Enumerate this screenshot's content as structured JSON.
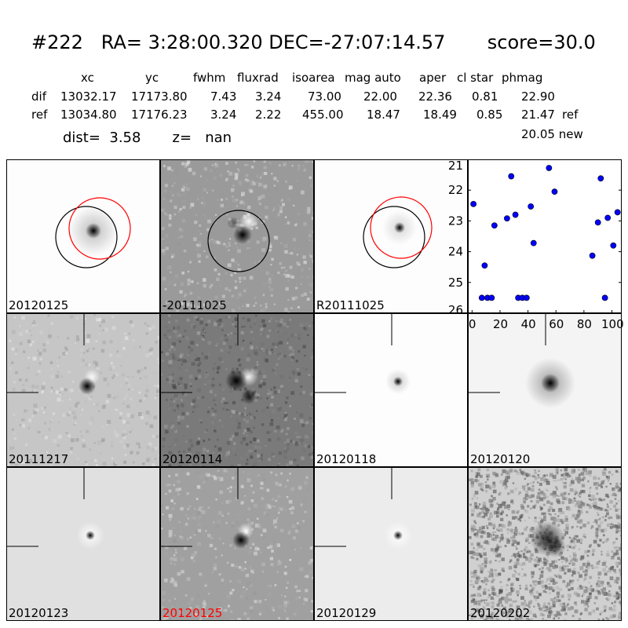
{
  "header": {
    "title": "#222   RA= 3:28:00.320 DEC=-27:07:14.57       score=30.0",
    "columns": [
      "xc",
      "yc",
      "fwhm",
      "fluxrad",
      "isoarea",
      "mag auto",
      "aper",
      "cl star",
      "phmag"
    ],
    "rows": [
      {
        "label": "dif",
        "values": [
          "13032.17",
          "17173.80",
          "7.43",
          "3.24",
          "73.00",
          "22.00",
          "22.36",
          "0.81",
          "22.90"
        ],
        "suffix": ""
      },
      {
        "label": "ref",
        "values": [
          "13034.80",
          "17176.23",
          "3.24",
          "2.22",
          "455.00",
          "18.47",
          "18.49",
          "0.85",
          "21.47"
        ],
        "suffix": "ref"
      }
    ],
    "dist_text": "dist=  3.58       z=   nan",
    "new_text": "20.05 new"
  },
  "panels": [
    {
      "label": "20120125",
      "bg": "#fdfdfd",
      "kind": "circles",
      "color": "#000000"
    },
    {
      "label": "-20111025",
      "bg": "#9a9a9a",
      "kind": "circle-dipole",
      "color": "#000000"
    },
    {
      "label": "R20111025",
      "bg": "#fdfdfd",
      "kind": "circles-small",
      "color": "#000000"
    },
    {
      "label": "20111217",
      "bg": "#c6c6c6",
      "kind": "cross-dipole",
      "color": "#000000"
    },
    {
      "label": "20120114",
      "bg": "#7a7a7a",
      "kind": "cross-dipole-big",
      "color": "#000000"
    },
    {
      "label": "20120118",
      "bg": "#fdfdfd",
      "kind": "cross-small",
      "color": "#000000"
    },
    {
      "label": "20120120",
      "bg": "#f4f4f4",
      "kind": "cross-blob",
      "color": "#000000"
    },
    {
      "label": "20120123",
      "bg": "#e0e0e0",
      "kind": "cross-ring",
      "color": "#000000"
    },
    {
      "label": "20120125",
      "bg": "#a0a0a0",
      "kind": "cross-dipole",
      "color": "#ff0000"
    },
    {
      "label": "20120129",
      "bg": "#ececec",
      "kind": "cross-ring",
      "color": "#000000"
    },
    {
      "label": "20120202",
      "bg": "#d0d0d0",
      "kind": "noisy",
      "color": "#000000"
    }
  ],
  "chart_data": {
    "type": "scatter",
    "title": "",
    "xlabel": "",
    "ylabel": "",
    "xlim": [
      -3,
      107
    ],
    "ylim": [
      26,
      21
    ],
    "xticks": [
      0,
      20,
      40,
      60,
      80,
      100
    ],
    "yticks": [
      21,
      22,
      23,
      24,
      25,
      26
    ],
    "marker_color": "#0000ff",
    "points": [
      {
        "x": 1,
        "y": 22.45
      },
      {
        "x": 7,
        "y": 25.5
      },
      {
        "x": 9,
        "y": 24.45
      },
      {
        "x": 11,
        "y": 25.5
      },
      {
        "x": 14,
        "y": 25.5
      },
      {
        "x": 16,
        "y": 23.15
      },
      {
        "x": 25,
        "y": 22.92
      },
      {
        "x": 28,
        "y": 21.55
      },
      {
        "x": 31,
        "y": 22.8
      },
      {
        "x": 33,
        "y": 25.5
      },
      {
        "x": 36,
        "y": 25.5
      },
      {
        "x": 39,
        "y": 25.5
      },
      {
        "x": 42,
        "y": 22.53
      },
      {
        "x": 44,
        "y": 23.72
      },
      {
        "x": 55,
        "y": 21.28
      },
      {
        "x": 59,
        "y": 22.05
      },
      {
        "x": 86,
        "y": 24.13
      },
      {
        "x": 90,
        "y": 23.05
      },
      {
        "x": 92,
        "y": 21.62
      },
      {
        "x": 95,
        "y": 25.5
      },
      {
        "x": 97,
        "y": 22.9
      },
      {
        "x": 101,
        "y": 23.8
      },
      {
        "x": 104,
        "y": 22.72
      }
    ]
  }
}
